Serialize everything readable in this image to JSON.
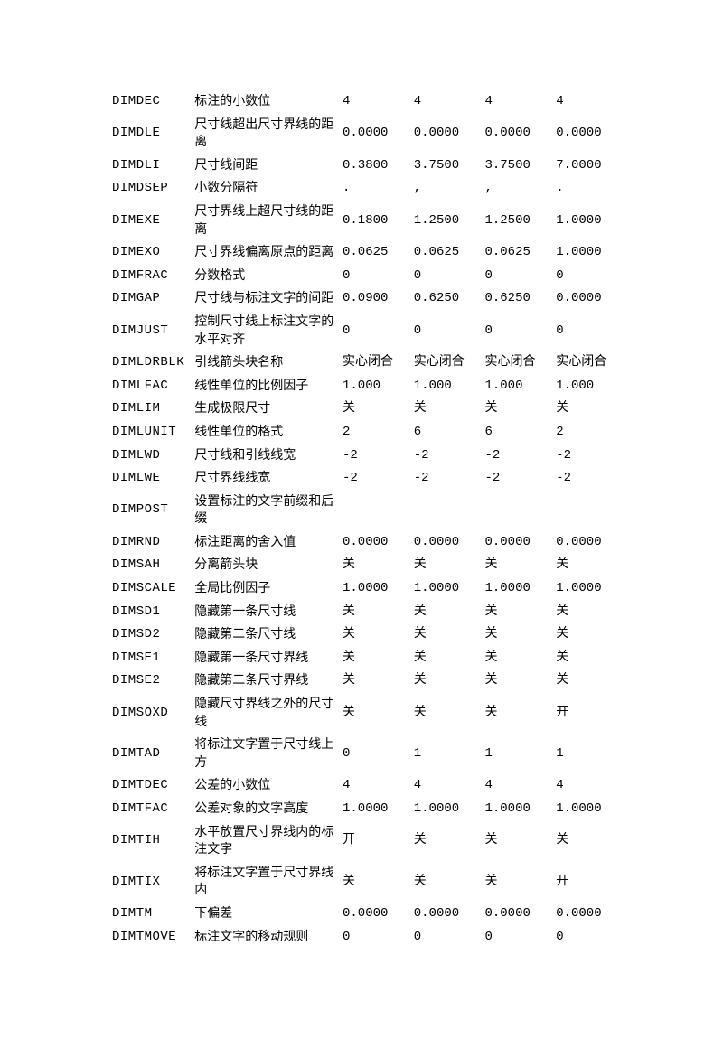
{
  "table": {
    "rows": [
      {
        "var": "DIMDEC",
        "desc": "标注的小数位",
        "v1": "4",
        "v2": "4",
        "v3": "4",
        "v4": "4"
      },
      {
        "var": "DIMDLE",
        "desc": "尺寸线超出尺寸界线的距离",
        "v1": "0.0000",
        "v2": "0.0000",
        "v3": "0.0000",
        "v4": "0.0000"
      },
      {
        "var": "DIMDLI",
        "desc": "尺寸线间距",
        "v1": "0.3800",
        "v2": "3.7500",
        "v3": "3.7500",
        "v4": "7.0000"
      },
      {
        "var": "DIMDSEP",
        "desc": "小数分隔符",
        "v1": ".",
        "v2": ",",
        "v3": ",",
        "v4": "."
      },
      {
        "var": "DIMEXE",
        "desc": "尺寸界线上超尺寸线的距离",
        "v1": "0.1800",
        "v2": "1.2500",
        "v3": "1.2500",
        "v4": "1.0000"
      },
      {
        "var": "DIMEXO",
        "desc": "尺寸界线偏离原点的距离",
        "v1": "0.0625",
        "v2": "0.0625",
        "v3": "0.0625",
        "v4": "1.0000"
      },
      {
        "var": "DIMFRAC",
        "desc": "分数格式",
        "v1": "0",
        "v2": "0",
        "v3": "0",
        "v4": "0"
      },
      {
        "var": "DIMGAP",
        "desc": "尺寸线与标注文字的间距",
        "v1": "0.0900",
        "v2": "0.6250",
        "v3": "0.6250",
        "v4": "0.0000"
      },
      {
        "var": "DIMJUST",
        "desc": "控制尺寸线上标注文字的水平对齐",
        "v1": "0",
        "v2": "0",
        "v3": "0",
        "v4": "0"
      },
      {
        "var": "DIMLDRBLK",
        "desc": "引线箭头块名称",
        "v1": "实心闭合",
        "v2": "实心闭合",
        "v3": "实心闭合",
        "v4": "实心闭合"
      },
      {
        "var": "DIMLFAC",
        "desc": "线性单位的比例因子",
        "v1": "1.000",
        "v2": "1.000",
        "v3": "1.000",
        "v4": "1.000"
      },
      {
        "var": "DIMLIM",
        "desc": "生成极限尺寸",
        "v1": "关",
        "v2": "关",
        "v3": "关",
        "v4": "关"
      },
      {
        "var": "DIMLUNIT",
        "desc": "线性单位的格式",
        "v1": "2",
        "v2": "6",
        "v3": "6",
        "v4": "2"
      },
      {
        "var": "DIMLWD",
        "desc": "尺寸线和引线线宽",
        "v1": "-2",
        "v2": "-2",
        "v3": "-2",
        "v4": "-2"
      },
      {
        "var": "DIMLWE",
        "desc": "尺寸界线线宽",
        "v1": "-2",
        "v2": "-2",
        "v3": "-2",
        "v4": "-2"
      },
      {
        "var": "DIMPOST",
        "desc": "设置标注的文字前缀和后缀",
        "v1": "",
        "v2": "",
        "v3": "",
        "v4": ""
      },
      {
        "var": "DIMRND",
        "desc": "标注距离的舍入值",
        "v1": "0.0000",
        "v2": "0.0000",
        "v3": "0.0000",
        "v4": "0.0000"
      },
      {
        "var": "DIMSAH",
        "desc": "分离箭头块",
        "v1": "关",
        "v2": "关",
        "v3": "关",
        "v4": "关"
      },
      {
        "var": "DIMSCALE",
        "desc": "全局比例因子",
        "v1": "1.0000",
        "v2": "1.0000",
        "v3": "1.0000",
        "v4": "1.0000"
      },
      {
        "var": "DIMSD1",
        "desc": "隐藏第一条尺寸线",
        "v1": "关",
        "v2": "关",
        "v3": "关",
        "v4": "关"
      },
      {
        "var": "DIMSD2",
        "desc": "隐藏第二条尺寸线",
        "v1": "关",
        "v2": "关",
        "v3": "关",
        "v4": "关"
      },
      {
        "var": "DIMSE1",
        "desc": "隐藏第一条尺寸界线",
        "v1": "关",
        "v2": "关",
        "v3": "关",
        "v4": "关"
      },
      {
        "var": "DIMSE2",
        "desc": "隐藏第二条尺寸界线",
        "v1": "关",
        "v2": "关",
        "v3": "关",
        "v4": "关"
      },
      {
        "var": "DIMSOXD",
        "desc": "隐藏尺寸界线之外的尺寸线",
        "v1": "关",
        "v2": "关",
        "v3": "关",
        "v4": "开"
      },
      {
        "var": "DIMTAD",
        "desc": "将标注文字置于尺寸线上方",
        "v1": "0",
        "v2": "1",
        "v3": "1",
        "v4": "1"
      },
      {
        "var": "DIMTDEC",
        "desc": "公差的小数位",
        "v1": "4",
        "v2": "4",
        "v3": "4",
        "v4": "4"
      },
      {
        "var": "DIMTFAC",
        "desc": "公差对象的文字高度",
        "v1": "1.0000",
        "v2": "1.0000",
        "v3": "1.0000",
        "v4": "1.0000"
      },
      {
        "var": "DIMTIH",
        "desc": "水平放置尺寸界线内的标注文字",
        "v1": "开",
        "v2": "关",
        "v3": "关",
        "v4": "关"
      },
      {
        "var": "DIMTIX",
        "desc": "将标注文字置于尺寸界线内",
        "v1": "关",
        "v2": "关",
        "v3": "关",
        "v4": "开"
      },
      {
        "var": "DIMTM",
        "desc": "下偏差",
        "v1": "0.0000",
        "v2": "0.0000",
        "v3": "0.0000",
        "v4": "0.0000"
      },
      {
        "var": "DIMTMOVE",
        "desc": "标注文字的移动规则",
        "v1": "0",
        "v2": "0",
        "v3": "0",
        "v4": "0"
      }
    ]
  }
}
